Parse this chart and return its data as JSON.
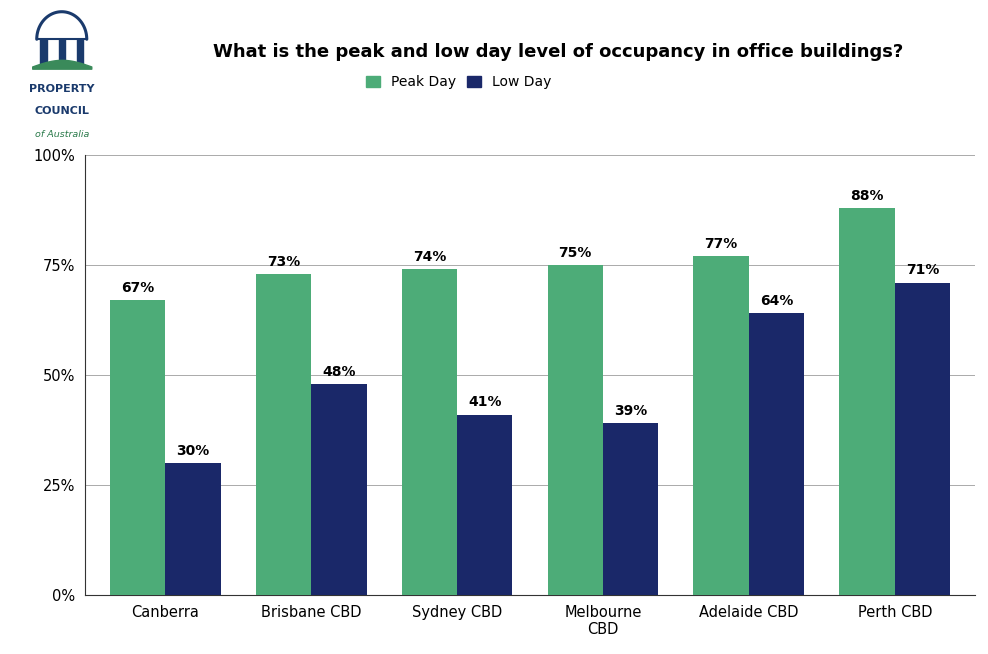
{
  "title": "What is the peak and low day level of occupancy in office buildings?",
  "categories": [
    "Canberra",
    "Brisbane CBD",
    "Sydney CBD",
    "Melbourne\nCBD",
    "Adelaide CBD",
    "Perth CBD"
  ],
  "peak_values": [
    67,
    73,
    74,
    75,
    77,
    88
  ],
  "low_values": [
    30,
    48,
    41,
    39,
    64,
    71
  ],
  "peak_color": "#4dac78",
  "low_color": "#1a2869",
  "peak_label": "Peak Day",
  "low_label": "Low Day",
  "ylim": [
    0,
    100
  ],
  "yticks": [
    0,
    25,
    50,
    75,
    100
  ],
  "yticklabels": [
    "0%",
    "25%",
    "50%",
    "75%",
    "100%"
  ],
  "background_color": "#ffffff",
  "bar_width": 0.38,
  "title_fontsize": 13,
  "tick_fontsize": 10.5,
  "annotation_fontsize": 10,
  "legend_fontsize": 10,
  "logo_color1": "#1a3a6c",
  "logo_color2": "#3a8a5a",
  "logo_text_line1": "PROPERTY",
  "logo_text_line2": "COUNCIL",
  "logo_text_line3": "of Australia"
}
